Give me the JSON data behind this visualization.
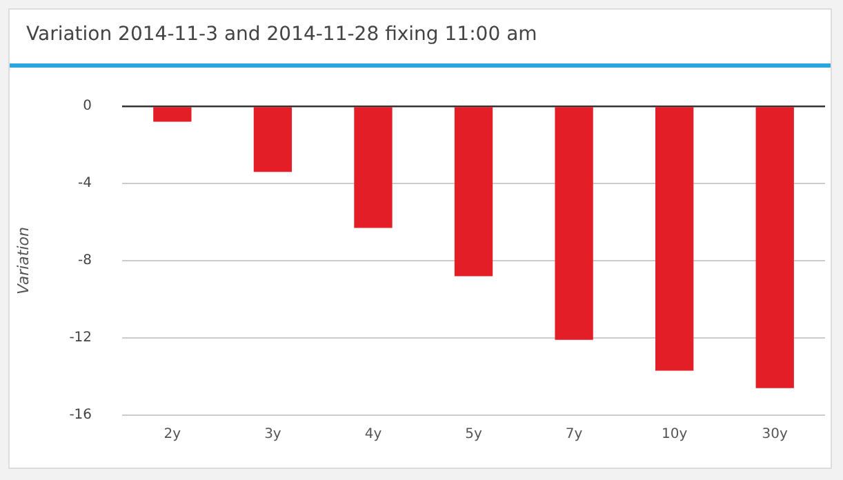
{
  "chart_data": {
    "type": "bar",
    "title": "Variation 2014-11-3 and 2014-11-28 fixing 11:00 am",
    "ylabel": "Variation",
    "categories": [
      "2y",
      "3y",
      "4y",
      "5y",
      "7y",
      "10y",
      "30y"
    ],
    "values": [
      -0.8,
      -3.4,
      -6.3,
      -8.8,
      -12.1,
      -13.7,
      -14.6
    ],
    "color": "#e41e26",
    "ylim": [
      -16,
      0
    ],
    "yticks": [
      -16,
      -12,
      -8,
      -4,
      0
    ],
    "grid": "y",
    "legend": false
  }
}
